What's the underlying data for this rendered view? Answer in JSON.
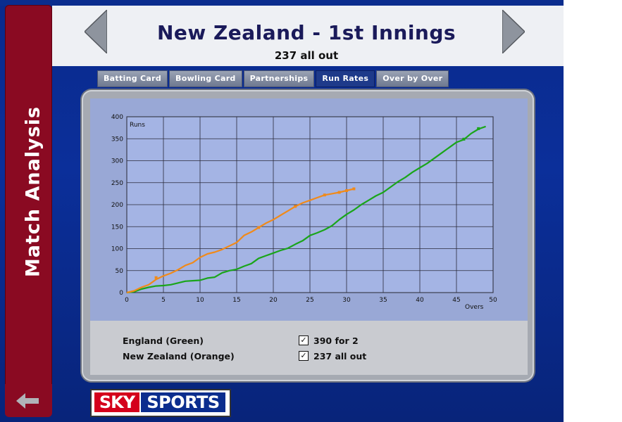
{
  "sidebar": {
    "title": "Match Analysis",
    "back_icon": "arrow-left-icon"
  },
  "header": {
    "title": "New Zealand - 1st Innings",
    "subtitle": "237 all out"
  },
  "tabs": [
    {
      "label": "Batting Card",
      "active": false
    },
    {
      "label": "Bowling Card",
      "active": false
    },
    {
      "label": "Partnerships",
      "active": false
    },
    {
      "label": "Run Rates",
      "active": true
    },
    {
      "label": "Over by Over",
      "active": false
    }
  ],
  "legend": {
    "items": [
      {
        "team": "England (Green)",
        "checked": true,
        "summary": "390 for 2"
      },
      {
        "team": "New Zealand (Orange)",
        "checked": true,
        "summary": "237 all out"
      }
    ]
  },
  "logo": {
    "sky": "SKY",
    "sports": "SPORTS"
  },
  "chart_data": {
    "type": "line",
    "ylabel": "Runs",
    "xlabel": "Overs",
    "xlim": [
      0,
      50
    ],
    "ylim": [
      0,
      400
    ],
    "x_ticks": [
      0,
      5,
      10,
      15,
      20,
      25,
      30,
      35,
      40,
      45,
      50
    ],
    "y_ticks": [
      0,
      50,
      100,
      150,
      200,
      250,
      300,
      350,
      400
    ],
    "grid": true,
    "series": [
      {
        "name": "England (Green)",
        "color": "#1aa51a",
        "points": [
          [
            0,
            0
          ],
          [
            1,
            2
          ],
          [
            2,
            8
          ],
          [
            3,
            12
          ],
          [
            4,
            15
          ],
          [
            5,
            16
          ],
          [
            6,
            18
          ],
          [
            7,
            22
          ],
          [
            8,
            26
          ],
          [
            9,
            27
          ],
          [
            10,
            28
          ],
          [
            11,
            33
          ],
          [
            12,
            35
          ],
          [
            13,
            45
          ],
          [
            14,
            50
          ],
          [
            15,
            53
          ],
          [
            16,
            60
          ],
          [
            17,
            66
          ],
          [
            18,
            78
          ],
          [
            19,
            84
          ],
          [
            20,
            90
          ],
          [
            21,
            96
          ],
          [
            22,
            101
          ],
          [
            23,
            110
          ],
          [
            24,
            118
          ],
          [
            25,
            130
          ],
          [
            26,
            136
          ],
          [
            27,
            143
          ],
          [
            28,
            152
          ],
          [
            29,
            166
          ],
          [
            30,
            178
          ],
          [
            31,
            188
          ],
          [
            32,
            200
          ],
          [
            33,
            210
          ],
          [
            34,
            220
          ],
          [
            35,
            228
          ],
          [
            36,
            240
          ],
          [
            37,
            252
          ],
          [
            38,
            262
          ],
          [
            39,
            274
          ],
          [
            40,
            284
          ],
          [
            41,
            294
          ],
          [
            42,
            306
          ],
          [
            43,
            318
          ],
          [
            44,
            330
          ],
          [
            45,
            342
          ],
          [
            46,
            348
          ],
          [
            47,
            362
          ],
          [
            48,
            372
          ],
          [
            49,
            378
          ]
        ],
        "wickets": [
          [
            46,
            349
          ],
          [
            48,
            373
          ]
        ]
      },
      {
        "name": "New Zealand (Orange)",
        "color": "#f08a1a",
        "points": [
          [
            0,
            0
          ],
          [
            1,
            4
          ],
          [
            2,
            12
          ],
          [
            3,
            18
          ],
          [
            4,
            30
          ],
          [
            5,
            38
          ],
          [
            6,
            44
          ],
          [
            7,
            52
          ],
          [
            8,
            62
          ],
          [
            9,
            68
          ],
          [
            10,
            80
          ],
          [
            11,
            88
          ],
          [
            12,
            92
          ],
          [
            13,
            98
          ],
          [
            14,
            106
          ],
          [
            15,
            114
          ],
          [
            16,
            130
          ],
          [
            17,
            138
          ],
          [
            18,
            148
          ],
          [
            19,
            158
          ],
          [
            20,
            166
          ],
          [
            21,
            176
          ],
          [
            22,
            186
          ],
          [
            23,
            196
          ],
          [
            24,
            204
          ],
          [
            25,
            210
          ],
          [
            26,
            216
          ],
          [
            27,
            222
          ],
          [
            28,
            225
          ],
          [
            29,
            228
          ],
          [
            30,
            232
          ],
          [
            31,
            236
          ]
        ],
        "wickets": [
          [
            4,
            34
          ],
          [
            18,
            148
          ],
          [
            23,
            196
          ],
          [
            27,
            222
          ],
          [
            29,
            228
          ],
          [
            30,
            232
          ],
          [
            31,
            236
          ]
        ]
      }
    ]
  }
}
